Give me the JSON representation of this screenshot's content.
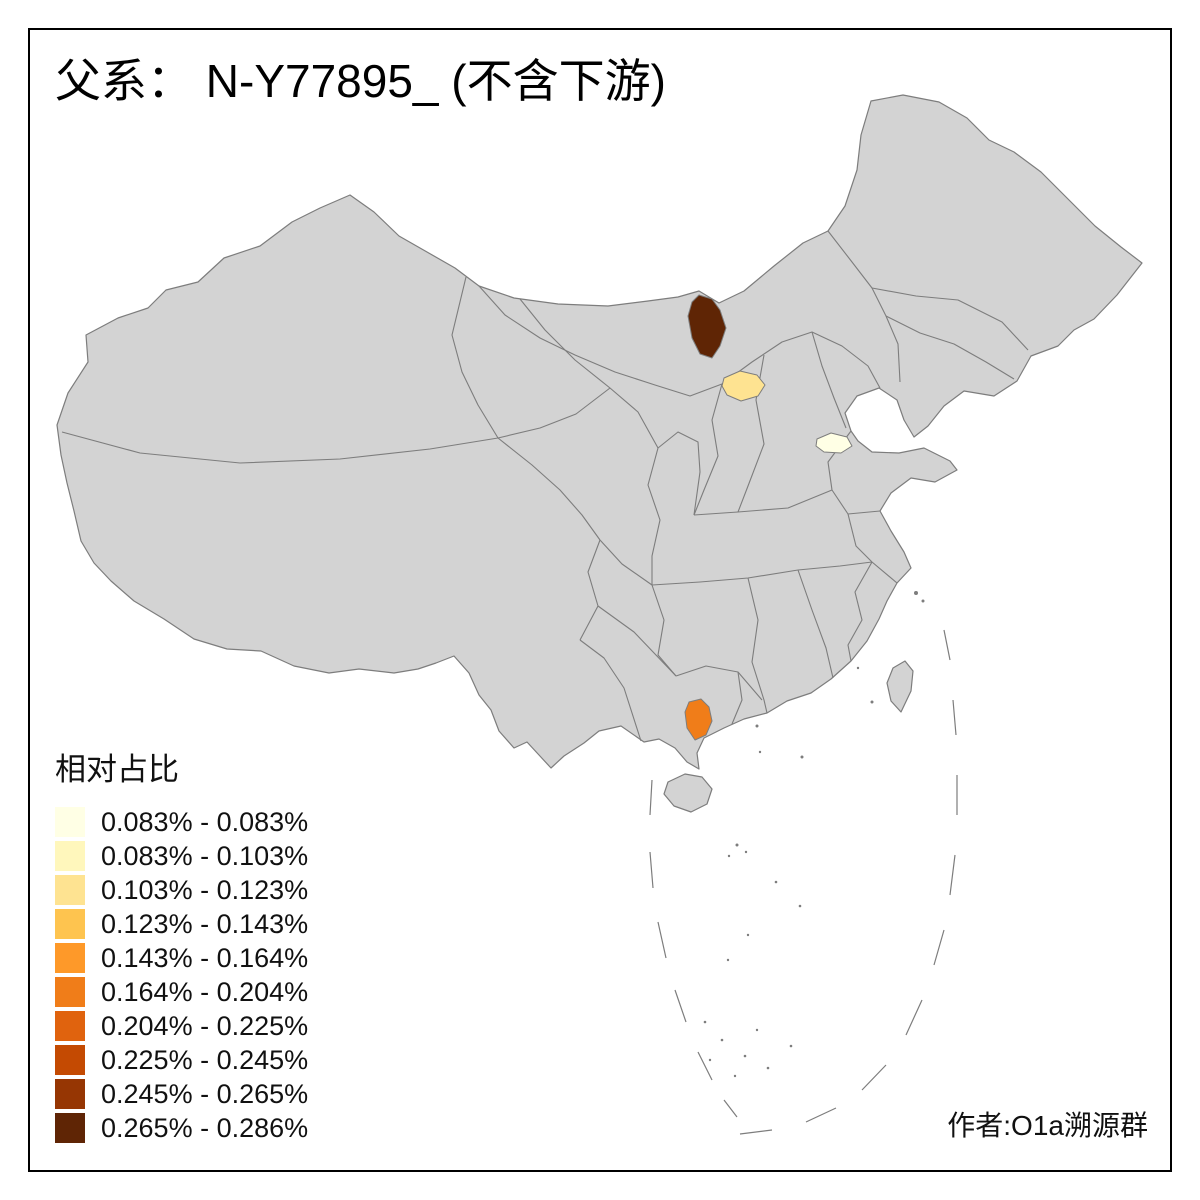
{
  "title": "父系： N-Y77895_ (不含下游)",
  "author": "作者:O1a溯源群",
  "legend": {
    "title": "相对占比",
    "items": [
      {
        "label": "0.083% - 0.083%",
        "color": "#ffffe5"
      },
      {
        "label": "0.083% - 0.103%",
        "color": "#fff7bc"
      },
      {
        "label": "0.103% - 0.123%",
        "color": "#fee391"
      },
      {
        "label": "0.123% - 0.143%",
        "color": "#fec44f"
      },
      {
        "label": "0.143% - 0.164%",
        "color": "#fe9929"
      },
      {
        "label": "0.164% - 0.204%",
        "color": "#f07d19"
      },
      {
        "label": "0.204% - 0.225%",
        "color": "#e0630e"
      },
      {
        "label": "0.225% - 0.245%",
        "color": "#c44a02"
      },
      {
        "label": "0.245% - 0.265%",
        "color": "#963603"
      },
      {
        "label": "0.265% - 0.286%",
        "color": "#5f2505"
      }
    ]
  },
  "map": {
    "land_color": "#d3d3d3",
    "border_color": "#7d7d7d",
    "highlighted_regions": [
      {
        "id": "region-north-dark",
        "class_index": 9
      },
      {
        "id": "region-north-light",
        "class_index": 2
      },
      {
        "id": "region-east-pale",
        "class_index": 0
      },
      {
        "id": "region-south-orange",
        "class_index": 5
      }
    ]
  },
  "chart_data": {
    "type": "heatmap",
    "title": "父系： N-Y77895_ (不含下游)",
    "legend_title": "相对占比",
    "bins": [
      "0.083% - 0.083%",
      "0.083% - 0.103%",
      "0.103% - 0.123%",
      "0.123% - 0.143%",
      "0.143% - 0.164%",
      "0.164% - 0.204%",
      "0.204% - 0.225%",
      "0.225% - 0.245%",
      "0.245% - 0.265%",
      "0.265% - 0.286%"
    ],
    "bin_colors": [
      "#ffffe5",
      "#fff7bc",
      "#fee391",
      "#fec44f",
      "#fe9929",
      "#f07d19",
      "#e0630e",
      "#c44a02",
      "#963603",
      "#5f2505"
    ],
    "highlighted_regions": [
      {
        "id": "region-north-dark",
        "bin_index": 9
      },
      {
        "id": "region-north-light",
        "bin_index": 2
      },
      {
        "id": "region-east-pale",
        "bin_index": 0
      },
      {
        "id": "region-south-orange",
        "bin_index": 5
      }
    ]
  }
}
